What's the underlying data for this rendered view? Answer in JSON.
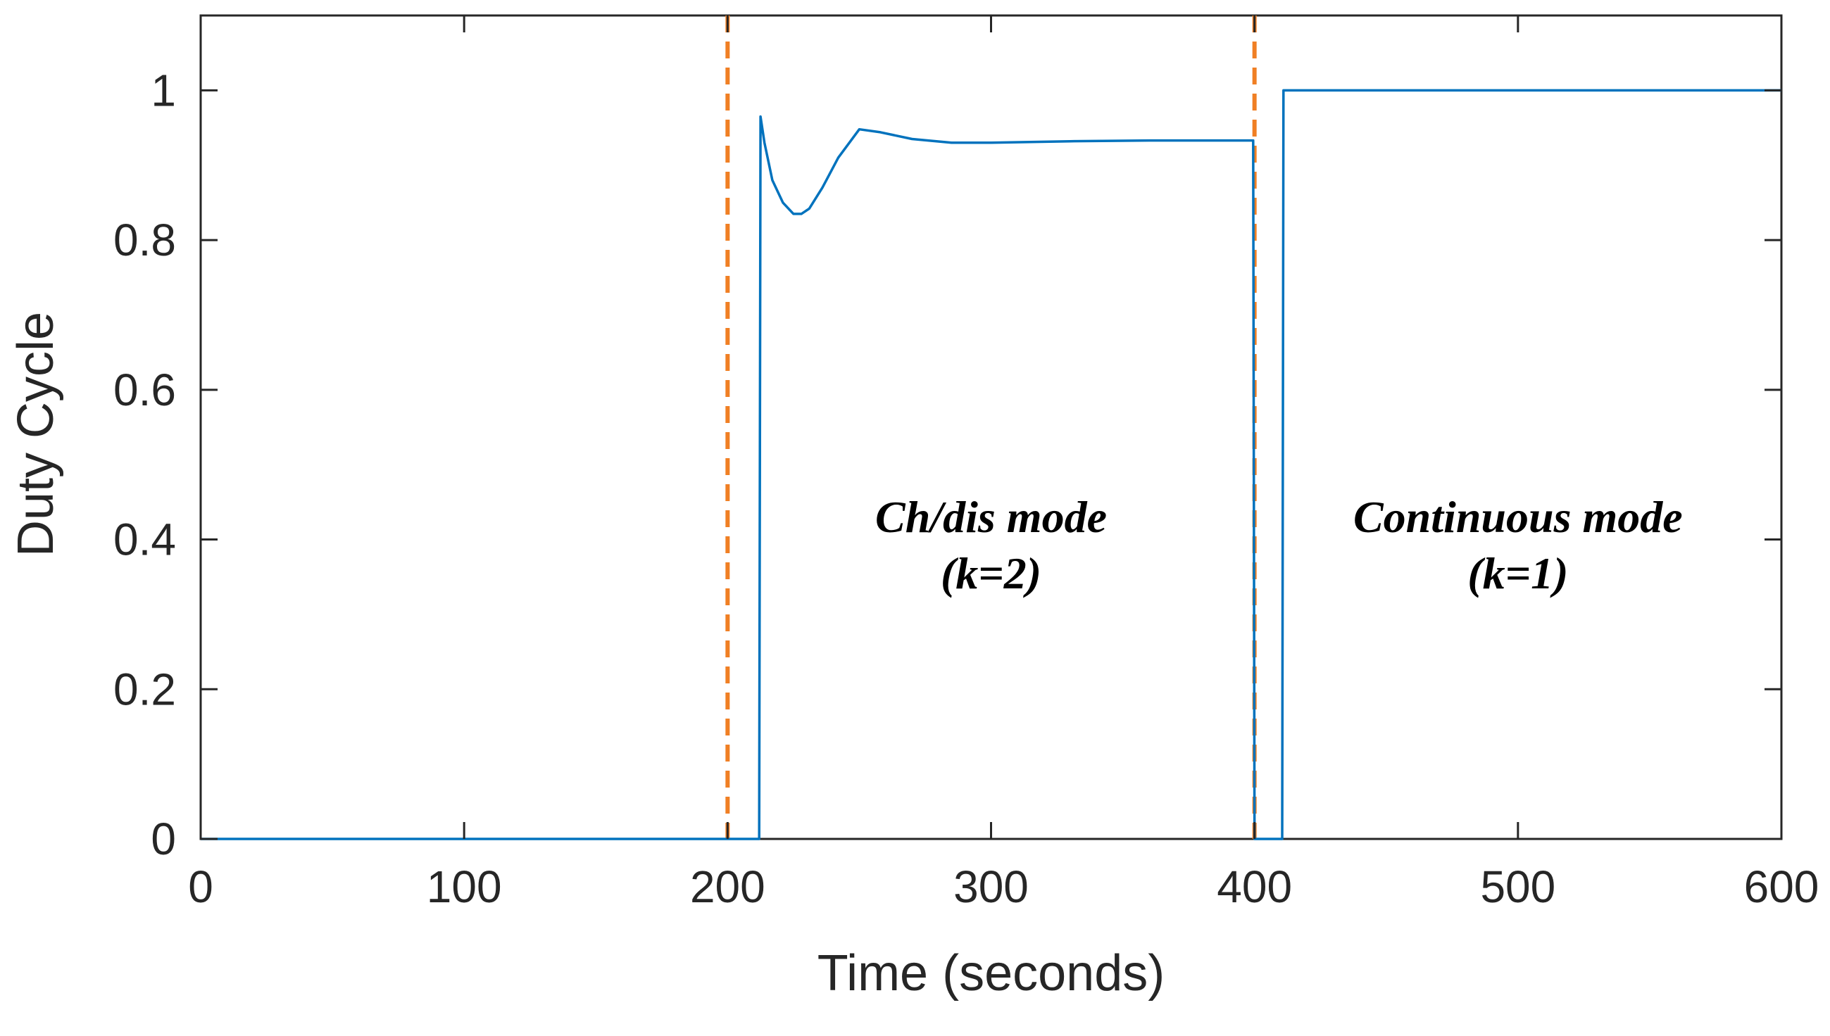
{
  "chart_data": {
    "type": "line",
    "title": "",
    "xlabel": "Time (seconds)",
    "ylabel": "Duty Cycle",
    "xlim": [
      0,
      600
    ],
    "ylim": [
      0,
      1.1
    ],
    "xticks": [
      0,
      100,
      200,
      300,
      400,
      500,
      600
    ],
    "yticks": [
      0,
      0.2,
      0.4,
      0.6,
      0.8,
      1
    ],
    "xtick_labels": [
      "0",
      "100",
      "200",
      "300",
      "400",
      "500",
      "600"
    ],
    "ytick_labels": [
      "0",
      "0.2",
      "0.4",
      "0.6",
      "0.8",
      "1"
    ],
    "grid": false,
    "series": [
      {
        "name": "Duty Cycle",
        "color": "#0072BD",
        "x": [
          0,
          212,
          212.5,
          214,
          217,
          221,
          225,
          228,
          231,
          236,
          242,
          250,
          258,
          270,
          285,
          300,
          330,
          360,
          399.5,
          400,
          410.5,
          411,
          600
        ],
        "y": [
          0,
          0,
          0.965,
          0.93,
          0.88,
          0.85,
          0.835,
          0.835,
          0.842,
          0.87,
          0.91,
          0.948,
          0.944,
          0.935,
          0.93,
          0.93,
          0.932,
          0.933,
          0.933,
          0,
          0,
          1.0,
          1.0
        ]
      }
    ],
    "vlines": [
      {
        "x": 200,
        "color": "#D95319",
        "style": "dashed"
      },
      {
        "x": 400,
        "color": "#D95319",
        "style": "dashed"
      }
    ],
    "annotations": [
      {
        "lines": [
          "Ch/dis mode",
          "(k=2)"
        ],
        "x": 300,
        "y": 0.41
      },
      {
        "lines": [
          "Continuous mode",
          "(k=1)"
        ],
        "x": 500,
        "y": 0.41
      }
    ],
    "colors": {
      "series": "#0072BD",
      "vline": "#F07F24",
      "axis": "#262626"
    }
  }
}
